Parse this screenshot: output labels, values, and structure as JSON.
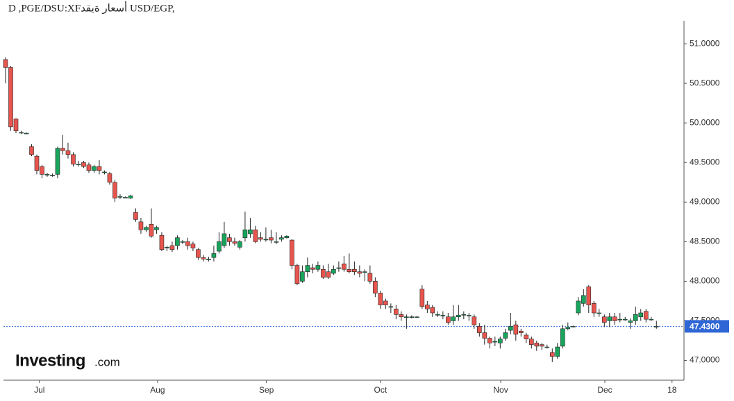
{
  "chart_data": {
    "type": "candlestick",
    "title": "D ,PGE/DSU:XFأسعار ةيقد USD/EGP,",
    "logo": "Investing",
    "logo_suffix": ".com",
    "colors": {
      "up": "#17a55c",
      "down": "#e8554e",
      "outline": "#222",
      "price_line": "#2f66d6"
    },
    "last_price": {
      "value": 47.43,
      "label": "47.4300"
    },
    "xlim": [
      -0.4,
      130.3
    ],
    "xticks": [
      {
        "value": 6.5,
        "label": "Jul"
      },
      {
        "value": 29.2,
        "label": "Aug"
      },
      {
        "value": 50.1,
        "label": "Sep"
      },
      {
        "value": 72,
        "label": "Oct"
      },
      {
        "value": 95.1,
        "label": "Nov"
      },
      {
        "value": 115.1,
        "label": "Dec"
      },
      {
        "value": 128,
        "label": "18"
      }
    ],
    "ylim": [
      46.75,
      51.29
    ],
    "yticks": [
      {
        "value": 47,
        "label": "47.0000"
      },
      {
        "value": 47.5,
        "label": "47.5000"
      },
      {
        "value": 48,
        "label": "48.0000"
      },
      {
        "value": 48.5,
        "label": "48.5000"
      },
      {
        "value": 49,
        "label": "49.0000"
      },
      {
        "value": 49.5,
        "label": "49.5000"
      },
      {
        "value": 50,
        "label": "50.0000"
      },
      {
        "value": 50.5,
        "label": "50.5000"
      },
      {
        "value": 51,
        "label": "51.0000"
      }
    ],
    "x": [
      0,
      1,
      2,
      3,
      4,
      5,
      6,
      7,
      8,
      9,
      10,
      11,
      12,
      13,
      14,
      15,
      16,
      17,
      18,
      19,
      20,
      21,
      22,
      23,
      24,
      25,
      26,
      27,
      28,
      29,
      30,
      31,
      32,
      33,
      34,
      35,
      36,
      37,
      38,
      39,
      40,
      41,
      42,
      43,
      44,
      45,
      46,
      47,
      48,
      49,
      50,
      51,
      52,
      53,
      54,
      55,
      56,
      57,
      58,
      59,
      60,
      61,
      62,
      63,
      64,
      65,
      66,
      67,
      68,
      69,
      70,
      71,
      72,
      73,
      74,
      75,
      76,
      77,
      78,
      79,
      80,
      81,
      82,
      83,
      84,
      85,
      86,
      87,
      88,
      89,
      90,
      91,
      92,
      93,
      94,
      95,
      96,
      97,
      98,
      99,
      100,
      101,
      102,
      103,
      104,
      105,
      106,
      107,
      108,
      109,
      110,
      111,
      112,
      113,
      114,
      115,
      116,
      117,
      118,
      119,
      120,
      121,
      122,
      123,
      124,
      125
    ],
    "open": [
      50.8,
      50.7,
      50.05,
      49.88,
      49.87,
      49.7,
      49.58,
      49.45,
      49.35,
      49.34,
      49.35,
      49.68,
      49.65,
      49.6,
      49.48,
      49.5,
      49.47,
      49.4,
      49.45,
      49.38,
      49.36,
      49.25,
      49.07,
      49.06,
      49.05,
      48.87,
      48.75,
      48.65,
      48.72,
      48.65,
      48.58,
      48.43,
      48.45,
      48.45,
      48.5,
      48.5,
      48.47,
      48.4,
      48.3,
      48.28,
      48.3,
      48.38,
      48.45,
      48.55,
      48.5,
      48.43,
      48.55,
      48.6,
      48.65,
      48.55,
      48.53,
      48.55,
      48.5,
      48.53,
      48.55,
      48.52,
      48.2,
      48.0,
      48.12,
      48.17,
      48.15,
      48.15,
      48.12,
      48.1,
      48.17,
      48.22,
      48.15,
      48.15,
      48.12,
      48.12,
      48.1,
      48.0,
      47.85,
      47.75,
      47.68,
      47.65,
      47.58,
      47.55,
      47.55,
      47.55,
      47.9,
      47.7,
      47.67,
      47.58,
      47.57,
      47.55,
      47.5,
      47.55,
      47.58,
      47.57,
      47.55,
      47.43,
      47.35,
      47.28,
      47.24,
      47.22,
      47.28,
      47.38,
      47.45,
      47.37,
      47.32,
      47.27,
      47.22,
      47.2,
      47.17,
      47.1,
      47.05,
      47.18,
      47.4,
      47.43,
      47.6,
      47.72,
      47.93,
      47.72,
      47.6,
      47.55,
      47.5,
      47.55,
      47.52,
      47.52,
      47.48,
      47.5,
      47.55,
      47.62,
      47.52,
      47.43
    ],
    "high": [
      50.83,
      50.72,
      50.06,
      49.9,
      49.88,
      49.73,
      49.6,
      49.47,
      49.37,
      49.36,
      49.7,
      49.85,
      49.75,
      49.63,
      49.52,
      49.52,
      49.5,
      49.47,
      49.53,
      49.4,
      49.38,
      49.28,
      49.1,
      49.07,
      49.09,
      48.92,
      48.8,
      48.7,
      48.92,
      48.7,
      48.62,
      48.45,
      48.5,
      48.58,
      48.52,
      48.55,
      48.5,
      48.42,
      48.33,
      48.31,
      48.45,
      48.62,
      48.75,
      48.6,
      48.55,
      48.52,
      48.88,
      48.8,
      48.7,
      48.62,
      48.68,
      48.65,
      48.62,
      48.58,
      48.58,
      48.53,
      48.22,
      48.2,
      48.3,
      48.22,
      48.25,
      48.2,
      48.22,
      48.2,
      48.25,
      48.32,
      48.35,
      48.25,
      48.2,
      48.15,
      48.2,
      48.05,
      47.88,
      47.78,
      47.72,
      47.7,
      47.62,
      47.58,
      47.57,
      47.56,
      47.95,
      47.75,
      47.7,
      47.62,
      47.62,
      47.6,
      47.7,
      47.7,
      47.62,
      47.6,
      47.58,
      47.47,
      47.45,
      47.3,
      47.3,
      47.3,
      47.4,
      47.6,
      47.5,
      47.4,
      47.35,
      47.3,
      47.25,
      47.22,
      47.2,
      47.15,
      47.22,
      47.45,
      47.48,
      47.44,
      47.8,
      47.9,
      47.95,
      47.75,
      47.65,
      47.58,
      47.6,
      47.6,
      47.6,
      47.55,
      47.53,
      47.68,
      47.65,
      47.65,
      47.55,
      47.5
    ],
    "low": [
      50.5,
      49.9,
      49.87,
      49.86,
      49.86,
      49.58,
      49.35,
      49.3,
      49.32,
      49.32,
      49.3,
      49.6,
      49.55,
      49.45,
      49.45,
      49.43,
      49.37,
      49.37,
      49.35,
      49.35,
      49.22,
      49.0,
      49.04,
      49.05,
      49.04,
      48.75,
      48.6,
      48.62,
      48.55,
      48.6,
      48.38,
      48.38,
      48.37,
      48.4,
      48.47,
      48.4,
      48.38,
      48.27,
      48.25,
      48.25,
      48.25,
      48.35,
      48.42,
      48.45,
      48.45,
      48.4,
      48.5,
      48.55,
      48.48,
      48.5,
      48.5,
      48.48,
      48.47,
      48.5,
      48.54,
      48.15,
      47.95,
      47.98,
      48.05,
      48.1,
      48.12,
      48.03,
      48.03,
      48.08,
      48.12,
      48.12,
      48.1,
      48.08,
      48.05,
      48.0,
      47.97,
      47.8,
      47.65,
      47.65,
      47.6,
      47.52,
      47.5,
      47.4,
      47.53,
      47.54,
      47.65,
      47.6,
      47.55,
      47.55,
      47.52,
      47.45,
      47.45,
      47.5,
      47.52,
      47.5,
      47.4,
      47.3,
      47.2,
      47.15,
      47.18,
      47.15,
      47.25,
      47.33,
      47.25,
      47.3,
      47.22,
      47.15,
      47.12,
      47.13,
      47.15,
      46.98,
      47.02,
      47.15,
      47.38,
      47.42,
      47.57,
      47.68,
      47.6,
      47.55,
      47.55,
      47.42,
      47.42,
      47.45,
      47.48,
      47.5,
      47.4,
      47.45,
      47.5,
      47.48,
      47.5,
      47.4
    ],
    "close": [
      50.7,
      49.95,
      49.9,
      49.88,
      49.87,
      49.6,
      49.4,
      49.35,
      49.35,
      49.34,
      49.68,
      49.65,
      49.6,
      49.48,
      49.48,
      49.45,
      49.4,
      49.45,
      49.4,
      49.38,
      49.25,
      49.05,
      49.07,
      49.06,
      49.08,
      48.78,
      48.65,
      48.68,
      48.57,
      48.68,
      48.4,
      48.43,
      48.4,
      48.55,
      48.5,
      48.45,
      48.42,
      48.3,
      48.28,
      48.28,
      48.35,
      48.5,
      48.6,
      48.5,
      48.48,
      48.5,
      48.65,
      48.65,
      48.5,
      48.53,
      48.53,
      48.52,
      48.5,
      48.55,
      48.57,
      48.2,
      47.97,
      48.12,
      48.2,
      48.15,
      48.2,
      48.05,
      48.05,
      48.15,
      48.17,
      48.15,
      48.12,
      48.12,
      48.1,
      48.12,
      48.0,
      47.85,
      47.7,
      47.7,
      47.68,
      47.58,
      47.55,
      47.55,
      47.55,
      47.55,
      47.68,
      47.65,
      47.6,
      47.58,
      47.57,
      47.48,
      47.55,
      47.57,
      47.58,
      47.57,
      47.45,
      47.35,
      47.28,
      47.22,
      47.24,
      47.27,
      47.35,
      47.43,
      47.33,
      47.35,
      47.27,
      47.2,
      47.18,
      47.18,
      47.17,
      47.05,
      47.17,
      47.4,
      47.42,
      47.43,
      47.75,
      47.82,
      47.7,
      47.6,
      47.6,
      47.48,
      47.55,
      47.5,
      47.52,
      47.52,
      47.5,
      47.58,
      47.6,
      47.52,
      47.52,
      47.43
    ]
  }
}
